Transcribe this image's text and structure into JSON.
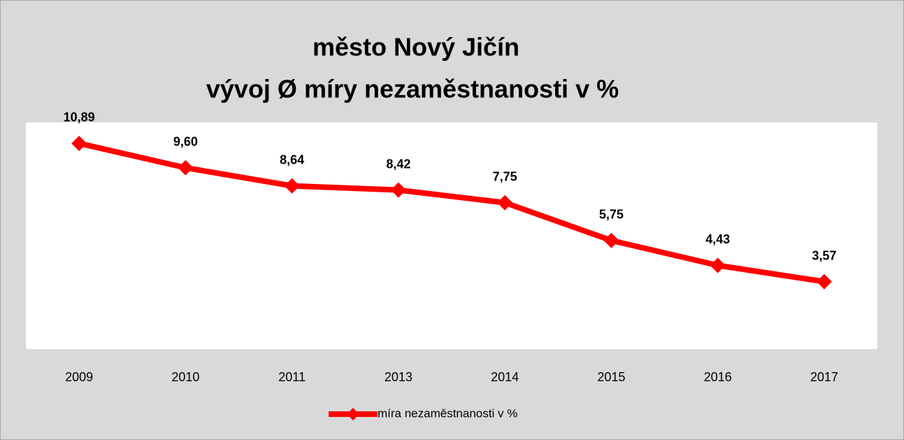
{
  "chart_data": {
    "type": "line",
    "title": "město Nový Jičín",
    "subtitle": "vývoj Ø míry nezaměstnanosti v %",
    "categories": [
      "2009",
      "2010",
      "2011",
      "2013",
      "2014",
      "2015",
      "2016",
      "2017"
    ],
    "series": [
      {
        "name": "míra nezaměstnanosti v %",
        "color": "#ff0000",
        "values": [
          10.89,
          9.6,
          8.64,
          8.42,
          7.75,
          5.75,
          4.43,
          3.57
        ],
        "value_labels": [
          "10,89",
          "9,60",
          "8,64",
          "8,42",
          "7,75",
          "5,75",
          "4,43",
          "3,57"
        ]
      }
    ],
    "ylim": [
      0,
      12
    ],
    "legend": "bottom"
  }
}
